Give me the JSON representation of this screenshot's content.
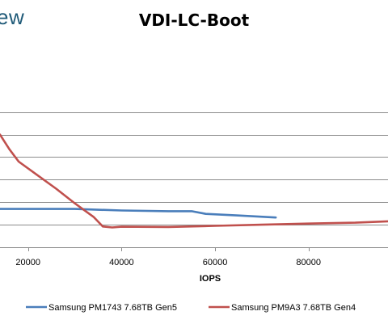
{
  "watermark": "ew",
  "chart_data": {
    "type": "line",
    "title": "VDI-LC-Boot",
    "xlabel": "IOPS",
    "ylabel": "",
    "xlim": [
      14000,
      97000
    ],
    "ylim": [
      0,
      9
    ],
    "x_ticks": [
      20000,
      40000,
      60000,
      80000
    ],
    "y_gridlines": [
      1,
      2,
      3,
      4,
      5,
      6
    ],
    "grid": true,
    "legend_position": "bottom",
    "series": [
      {
        "name": "Samsung PM1743 7.68TB Gen5",
        "color": "#4a7ebb",
        "points": [
          [
            14000,
            1.7
          ],
          [
            20000,
            1.7
          ],
          [
            30000,
            1.7
          ],
          [
            40000,
            1.63
          ],
          [
            50000,
            1.6
          ],
          [
            55000,
            1.6
          ],
          [
            58000,
            1.48
          ],
          [
            65000,
            1.41
          ],
          [
            73000,
            1.32
          ]
        ]
      },
      {
        "name": "Samsung PM9A3 7.68TB Gen4",
        "color": "#c0504d",
        "points": [
          [
            14000,
            5.0
          ],
          [
            16000,
            4.35
          ],
          [
            18000,
            3.8
          ],
          [
            22000,
            3.2
          ],
          [
            26000,
            2.6
          ],
          [
            30000,
            1.95
          ],
          [
            34000,
            1.35
          ],
          [
            36000,
            0.92
          ],
          [
            38000,
            0.88
          ],
          [
            40000,
            0.91
          ],
          [
            50000,
            0.9
          ],
          [
            60000,
            0.95
          ],
          [
            70000,
            1.0
          ],
          [
            80000,
            1.05
          ],
          [
            90000,
            1.09
          ],
          [
            97000,
            1.15
          ]
        ]
      }
    ]
  }
}
